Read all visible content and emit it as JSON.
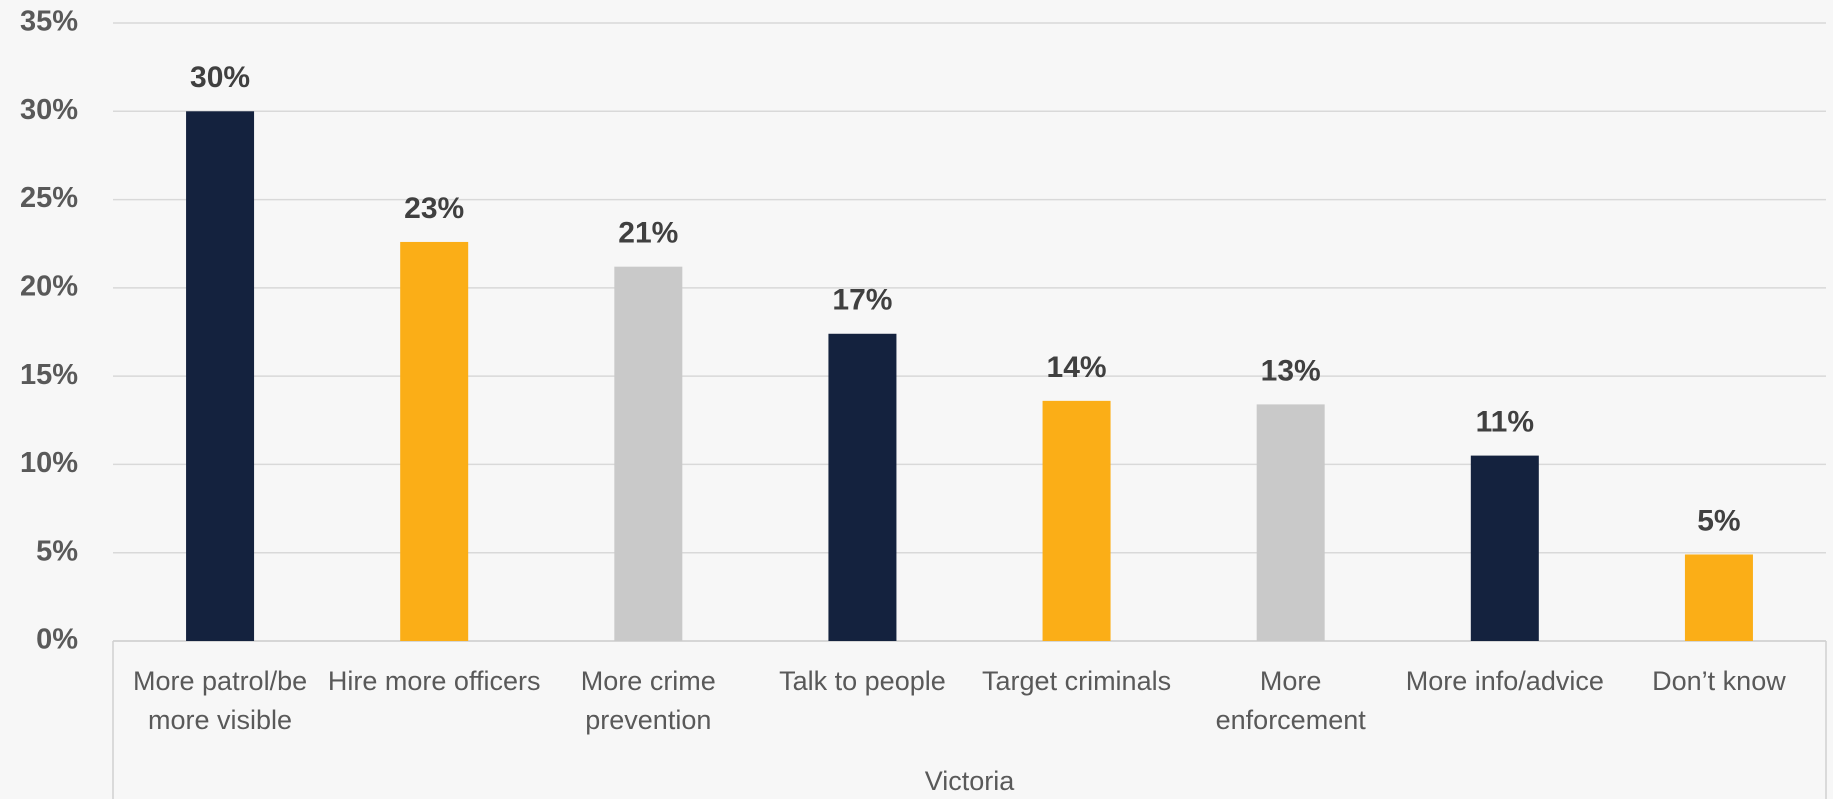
{
  "chart_data": {
    "type": "bar",
    "categories": [
      "More patrol/be more visible",
      "Hire more officers",
      "More crime prevention",
      "Talk to people",
      "Target criminals",
      "More enforcement",
      "More info/advice",
      "Don’t know"
    ],
    "x_group_label": "Victoria",
    "values": [
      30,
      22.6,
      21.2,
      17.4,
      13.6,
      13.4,
      10.5,
      4.9
    ],
    "value_labels": [
      "30%",
      "23%",
      "21%",
      "17%",
      "14%",
      "13%",
      "11%",
      "5%"
    ],
    "colors": [
      "#14223e",
      "#fbae17",
      "#c9c9c9",
      "#14223e",
      "#fbae17",
      "#c9c9c9",
      "#14223e",
      "#fbae17"
    ],
    "ylim": [
      0,
      35
    ],
    "yticks": [
      {
        "value": 0,
        "label": "0%"
      },
      {
        "value": 5,
        "label": "5%"
      },
      {
        "value": 10,
        "label": "10%"
      },
      {
        "value": 15,
        "label": "15%"
      },
      {
        "value": 20,
        "label": "20%"
      },
      {
        "value": 25,
        "label": "25%"
      },
      {
        "value": 30,
        "label": "30%"
      },
      {
        "value": 35,
        "label": "35%"
      }
    ],
    "grid": true
  }
}
